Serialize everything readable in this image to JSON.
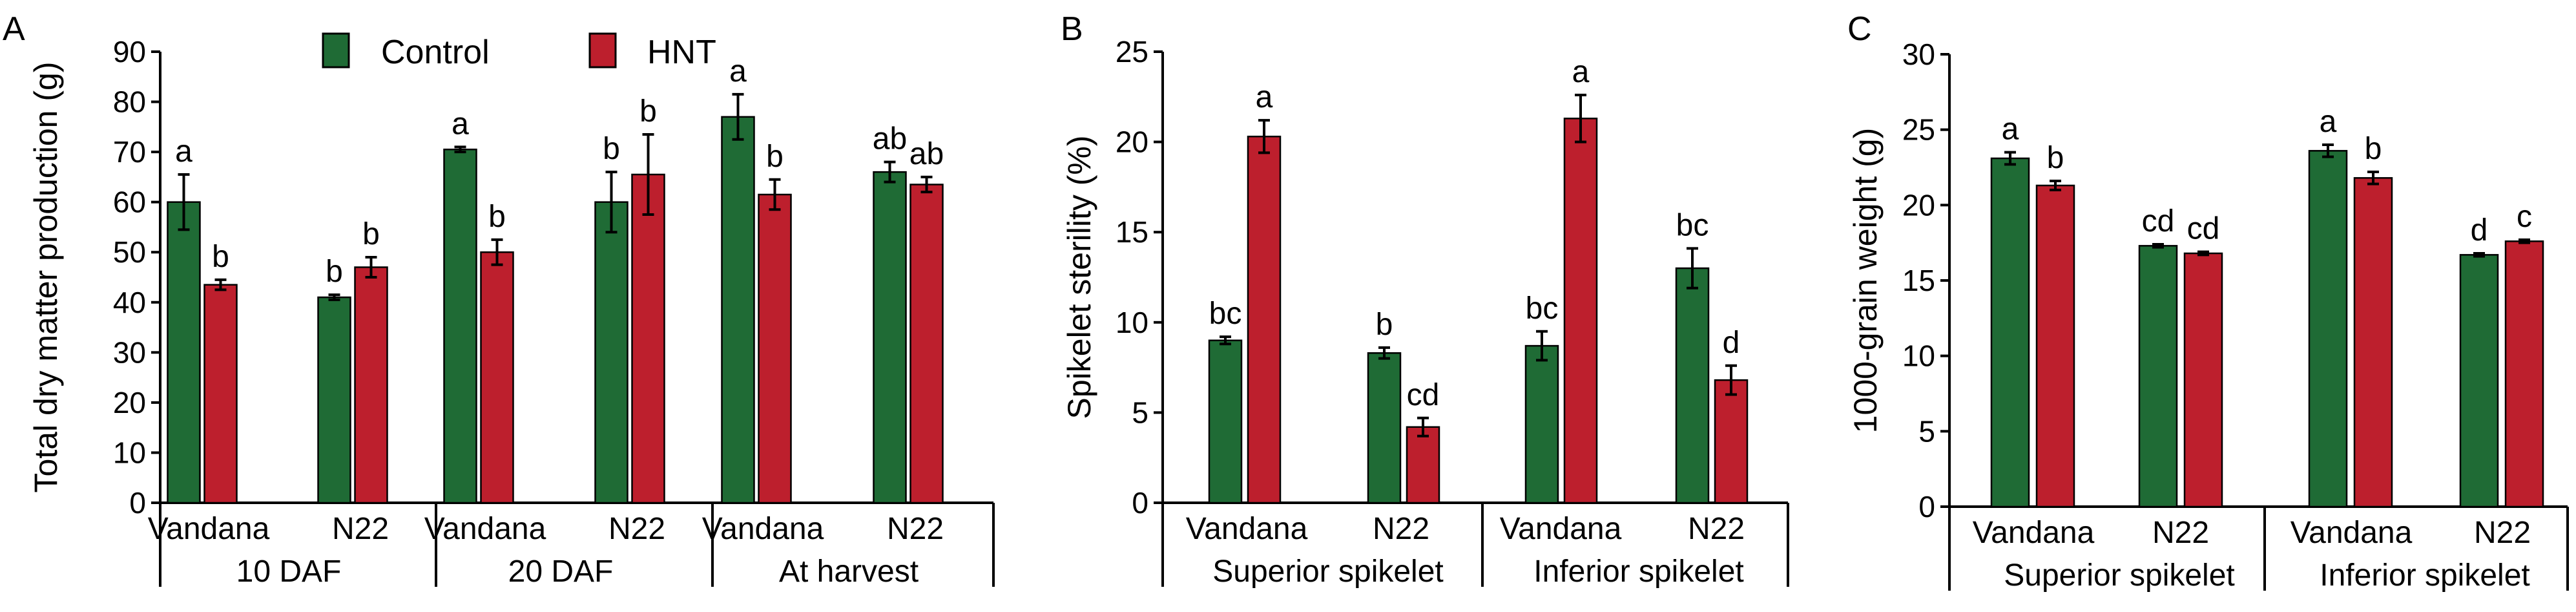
{
  "colors": {
    "control": "#1f6b35",
    "hnt": "#bd1f2d",
    "axis": "#000000"
  },
  "legend": {
    "items": [
      {
        "label": "Control",
        "color": "#1f6b35"
      },
      {
        "label": "HNT",
        "color": "#bd1f2d"
      }
    ]
  },
  "chart_data": [
    {
      "panel_label": "A",
      "type": "bar",
      "ylabel": "Total dry matter production (g)",
      "ylim": [
        0,
        90
      ],
      "yticks": [
        0,
        10,
        20,
        30,
        40,
        50,
        60,
        70,
        80,
        90
      ],
      "groups": [
        {
          "label": "10 DAF",
          "categories": [
            "Vandana",
            "N22"
          ]
        },
        {
          "label": "20 DAF",
          "categories": [
            "Vandana",
            "N22"
          ]
        },
        {
          "label": "At harvest",
          "categories": [
            "Vandana",
            "N22"
          ]
        }
      ],
      "series": [
        {
          "name": "Control",
          "values": [
            60,
            41,
            70.5,
            60,
            77,
            66
          ],
          "errors": [
            5.5,
            0.5,
            0.5,
            6,
            4.5,
            2
          ],
          "letters": [
            "a",
            "b",
            "a",
            "b",
            "a",
            "ab"
          ]
        },
        {
          "name": "HNT",
          "values": [
            43.5,
            47,
            50,
            65.5,
            61.5,
            63.5
          ],
          "errors": [
            1,
            2,
            2.5,
            8,
            3,
            1.5
          ],
          "letters": [
            "b",
            "b",
            "b",
            "b",
            "b",
            "ab"
          ]
        }
      ]
    },
    {
      "panel_label": "B",
      "type": "bar",
      "ylabel": "Spikelet sterility (%)",
      "ylim": [
        0,
        25
      ],
      "yticks": [
        0,
        5,
        10,
        15,
        20,
        25
      ],
      "groups": [
        {
          "label": "Superior spikelet",
          "categories": [
            "Vandana",
            "N22"
          ]
        },
        {
          "label": "Inferior spikelet",
          "categories": [
            "Vandana",
            "N22"
          ]
        }
      ],
      "series": [
        {
          "name": "Control",
          "values": [
            9,
            8.3,
            8.7,
            13
          ],
          "errors": [
            0.2,
            0.3,
            0.8,
            1.1
          ],
          "letters": [
            "bc",
            "b",
            "bc",
            "bc"
          ]
        },
        {
          "name": "HNT",
          "values": [
            20.3,
            4.2,
            21.3,
            6.8
          ],
          "errors": [
            0.9,
            0.5,
            1.3,
            0.8
          ],
          "letters": [
            "a",
            "cd",
            "a",
            "d"
          ]
        }
      ]
    },
    {
      "panel_label": "C",
      "type": "bar",
      "ylabel": "1000-grain weight (g)",
      "ylim": [
        0,
        30
      ],
      "yticks": [
        0,
        5,
        10,
        15,
        20,
        25,
        30
      ],
      "groups": [
        {
          "label": "Superior spikelet",
          "categories": [
            "Vandana",
            "N22"
          ]
        },
        {
          "label": "Inferior spikelet",
          "categories": [
            "Vandana",
            "N22"
          ]
        }
      ],
      "series": [
        {
          "name": "Control",
          "values": [
            23.1,
            17.3,
            23.6,
            16.7
          ],
          "errors": [
            0.4,
            0.1,
            0.4,
            0.1
          ],
          "letters": [
            "a",
            "cd",
            "a",
            "d"
          ]
        },
        {
          "name": "HNT",
          "values": [
            21.3,
            16.8,
            21.8,
            17.6
          ],
          "errors": [
            0.3,
            0.1,
            0.4,
            0.1
          ],
          "letters": [
            "b",
            "cd",
            "b",
            "c"
          ]
        }
      ]
    }
  ]
}
